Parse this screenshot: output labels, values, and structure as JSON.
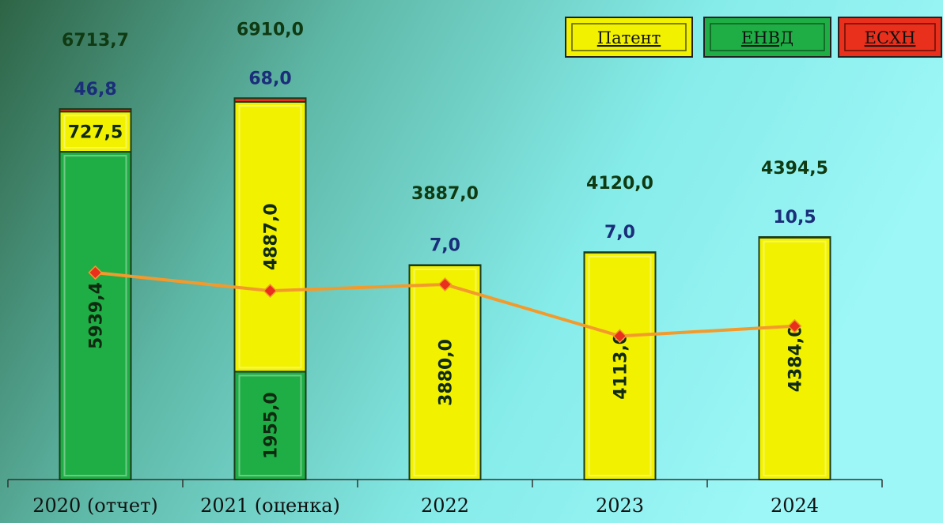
{
  "chart_data": {
    "type": "bar",
    "stacked": true,
    "categories": [
      "2020 (отчет)",
      "2021 (оценка)",
      "2022",
      "2023",
      "2024"
    ],
    "series": [
      {
        "name": "ЕНВД",
        "color": "#1fae45",
        "values": [
          5939.4,
          1955.0,
          null,
          null,
          null
        ],
        "value_labels": [
          "5939,4",
          "1955,0",
          null,
          null,
          null
        ]
      },
      {
        "name": "Патент",
        "color": "#f2f200",
        "values": [
          727.5,
          4887.0,
          3880.0,
          4113.0,
          4384.0
        ],
        "value_labels": [
          "727,5",
          "4887,0",
          "3880,0",
          "4113,0",
          "4384,0"
        ]
      },
      {
        "name": "ЕСХН",
        "color": "#e8301c",
        "values": [
          46.8,
          68.0,
          7.0,
          7.0,
          10.5
        ],
        "value_labels": [
          "46,8",
          "68,0",
          "7,0",
          "7,0",
          "10,5"
        ]
      }
    ],
    "totals": {
      "values": [
        6713.7,
        6910.0,
        3887.0,
        4120.0,
        4394.5
      ],
      "value_labels": [
        "6713,7",
        "6910,0",
        "3887,0",
        "4120,0",
        "4394,5"
      ]
    },
    "line": {
      "color": "#f39a2c",
      "marker_color": "#e8301c",
      "values": [
        3750,
        3420,
        3535,
        2600,
        2780
      ]
    },
    "ylim": [
      0,
      7200
    ],
    "legend": "top-right"
  }
}
